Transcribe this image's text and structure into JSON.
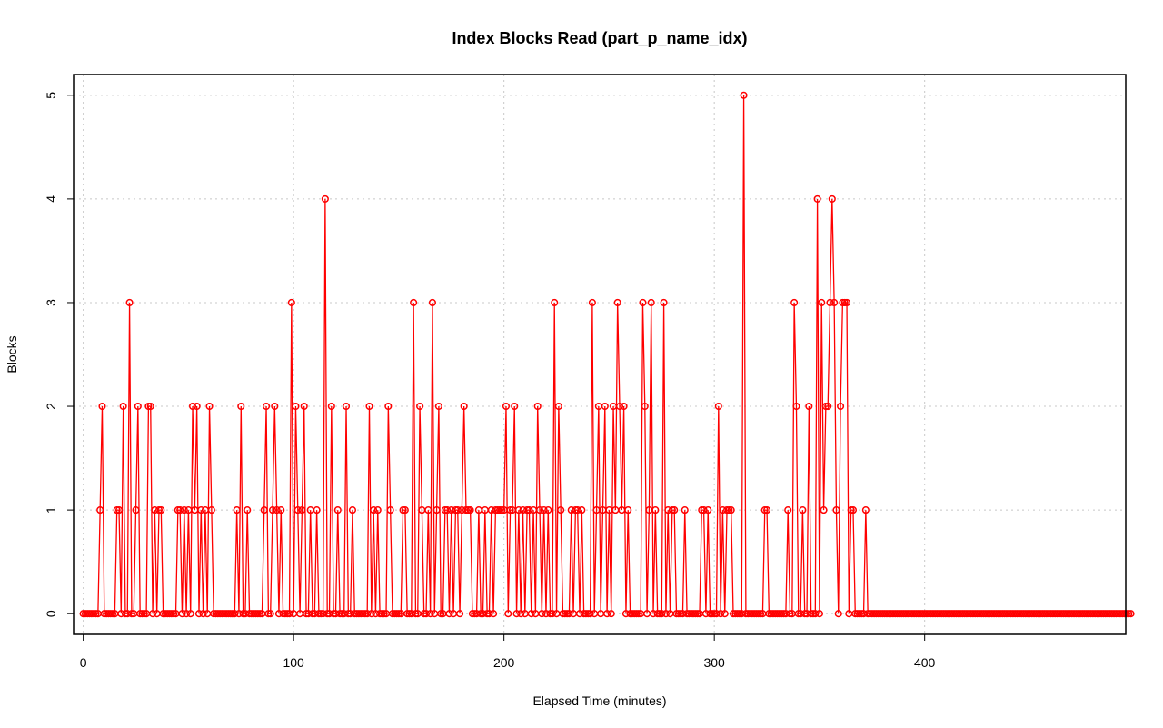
{
  "chart_data": {
    "type": "line",
    "title": "Index Blocks Read (part_p_name_idx)",
    "xlabel": "Elapsed Time (minutes)",
    "ylabel": "Blocks",
    "xlim": [
      -4.6,
      495.6
    ],
    "ylim": [
      -0.2,
      5.2
    ],
    "x_ticks": [
      0,
      100,
      200,
      300,
      400
    ],
    "y_ticks": [
      0,
      1,
      2,
      3,
      4,
      5
    ],
    "grid": true,
    "series_color": "#ff0000",
    "sampling": "one point per elapsed minute, x = 0..477",
    "series": [
      {
        "x_start": 0,
        "x_step": 1,
        "values": [
          0,
          0,
          0,
          0,
          0,
          0,
          0,
          0,
          1,
          2,
          0,
          0,
          0,
          0,
          0,
          0,
          1,
          1,
          0,
          2,
          0,
          0,
          3,
          0,
          0,
          1,
          2,
          0,
          0,
          0,
          0,
          2,
          2,
          0,
          1,
          0,
          1,
          1,
          0,
          0,
          0,
          0,
          0,
          0,
          0,
          1,
          1,
          0,
          1,
          0,
          1,
          0,
          2,
          1,
          2,
          0,
          1,
          0,
          1,
          0,
          2,
          1,
          0,
          0,
          0,
          0,
          0,
          0,
          0,
          0,
          0,
          0,
          0,
          1,
          0,
          2,
          0,
          0,
          1,
          0,
          0,
          0,
          0,
          0,
          0,
          0,
          1,
          2,
          0,
          0,
          1,
          2,
          1,
          0,
          1,
          0,
          0,
          0,
          0,
          3,
          0,
          2,
          1,
          0,
          1,
          2,
          0,
          0,
          1,
          0,
          0,
          1,
          0,
          0,
          0,
          4,
          0,
          0,
          2,
          0,
          0,
          1,
          0,
          0,
          0,
          2,
          0,
          0,
          1,
          0,
          0,
          0,
          0,
          0,
          0,
          0,
          2,
          0,
          1,
          0,
          1,
          0,
          0,
          0,
          0,
          2,
          1,
          0,
          0,
          0,
          0,
          0,
          1,
          1,
          0,
          0,
          0,
          3,
          0,
          0,
          2,
          1,
          0,
          0,
          1,
          0,
          3,
          0,
          1,
          2,
          0,
          0,
          1,
          1,
          0,
          1,
          0,
          1,
          1,
          0,
          1,
          2,
          1,
          1,
          1,
          0,
          0,
          0,
          1,
          0,
          0,
          1,
          0,
          0,
          1,
          0,
          1,
          1,
          1,
          1,
          1,
          2,
          0,
          1,
          1,
          2,
          0,
          1,
          0,
          1,
          0,
          1,
          1,
          0,
          1,
          0,
          2,
          1,
          0,
          1,
          0,
          1,
          0,
          0,
          3,
          0,
          2,
          1,
          0,
          0,
          0,
          0,
          1,
          0,
          1,
          1,
          0,
          1,
          0,
          0,
          0,
          0,
          3,
          0,
          1,
          2,
          0,
          1,
          2,
          0,
          1,
          0,
          2,
          1,
          3,
          2,
          1,
          2,
          0,
          1,
          0,
          0,
          0,
          0,
          0,
          0,
          3,
          2,
          0,
          1,
          3,
          0,
          1,
          0,
          0,
          0,
          3,
          0,
          1,
          0,
          1,
          1,
          0,
          0,
          0,
          0,
          1,
          0,
          0,
          0,
          0,
          0,
          0,
          0,
          1,
          1,
          0,
          1,
          0,
          0,
          0,
          0,
          2,
          0,
          1,
          0,
          1,
          1,
          1,
          0,
          0,
          0,
          0,
          0,
          5,
          0,
          0,
          0,
          0,
          0,
          0,
          0,
          0,
          0,
          1,
          1,
          0,
          0,
          0,
          0,
          0,
          0,
          0,
          0,
          0,
          1,
          0,
          0,
          3,
          2,
          0,
          0,
          1,
          0,
          0,
          2,
          0,
          0,
          0,
          4,
          0,
          3,
          1,
          2,
          2,
          3,
          4,
          3,
          1,
          0,
          2,
          3,
          3,
          3,
          0,
          1,
          1,
          0,
          0,
          0,
          0,
          0,
          1,
          0,
          0,
          0,
          0,
          0,
          0,
          0,
          0,
          0,
          0,
          0,
          0,
          0,
          0,
          0,
          0,
          0,
          0,
          0,
          0,
          0,
          0,
          0,
          0,
          0,
          0,
          0,
          0,
          0,
          0,
          0,
          0,
          0,
          0,
          0,
          0,
          0,
          0,
          0,
          0,
          0,
          0,
          0,
          0,
          0,
          0,
          0,
          0,
          0,
          0,
          0,
          0,
          0,
          0,
          0,
          0,
          0,
          0,
          0,
          0,
          0,
          0,
          0,
          0,
          0,
          0,
          0,
          0,
          0,
          0,
          0,
          0,
          0,
          0,
          0,
          0,
          0,
          0,
          0,
          0,
          0,
          0,
          0,
          0,
          0,
          0,
          0,
          0,
          0,
          0,
          0,
          0,
          0,
          0,
          0,
          0,
          0,
          0,
          0,
          0,
          0,
          0,
          0,
          0,
          0,
          0,
          0,
          0,
          0,
          0,
          0,
          0,
          0,
          0,
          0,
          0,
          0,
          0,
          0,
          0,
          0,
          0,
          0,
          0,
          0,
          0
        ]
      }
    ]
  }
}
